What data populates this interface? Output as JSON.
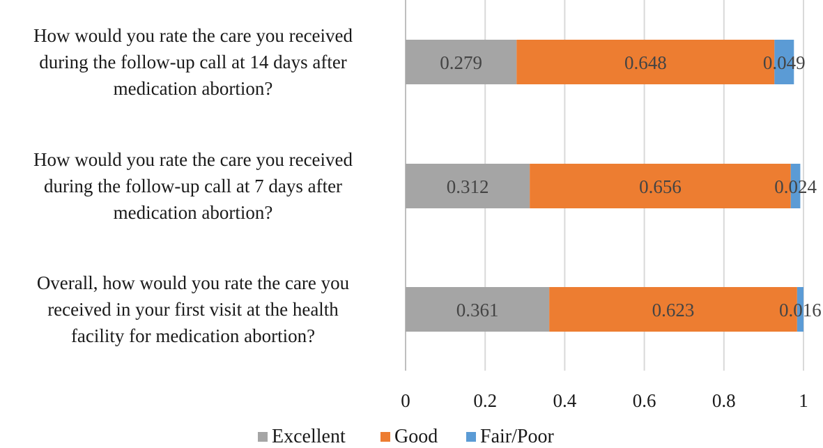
{
  "chart_data": {
    "type": "bar",
    "orientation": "horizontal",
    "stacked": true,
    "categories": [
      [
        "How would you rate the care you received",
        "during the follow-up call at 14 days after",
        "medication abortion?"
      ],
      [
        "How would you rate the care you received",
        "during the follow-up call at 7 days after",
        "medication abortion?"
      ],
      [
        "Overall, how would you rate the care you",
        "received in your first visit at the health",
        "facility for medication abortion?"
      ]
    ],
    "series": [
      {
        "name": "Excellent",
        "color": "#a5a5a5",
        "values": [
          0.279,
          0.312,
          0.361
        ],
        "labels": [
          "0.279",
          "0.312",
          "0.361"
        ]
      },
      {
        "name": "Good",
        "color": "#ed7d31",
        "values": [
          0.648,
          0.656,
          0.623
        ],
        "labels": [
          "0.648",
          "0.656",
          "0.623"
        ]
      },
      {
        "name": "Fair/Poor",
        "color": "#5b9bd5",
        "values": [
          0.049,
          0.024,
          0.016
        ],
        "labels": [
          "0.049",
          "0.024",
          "0.016"
        ]
      }
    ],
    "xlim": [
      0,
      1
    ],
    "xticks": [
      0,
      0.2,
      0.4,
      0.6,
      0.8,
      1
    ],
    "xtick_labels": [
      "0",
      "0.2",
      "0.4",
      "0.6",
      "0.8",
      "1"
    ],
    "grid": true,
    "legend_position": "bottom"
  }
}
